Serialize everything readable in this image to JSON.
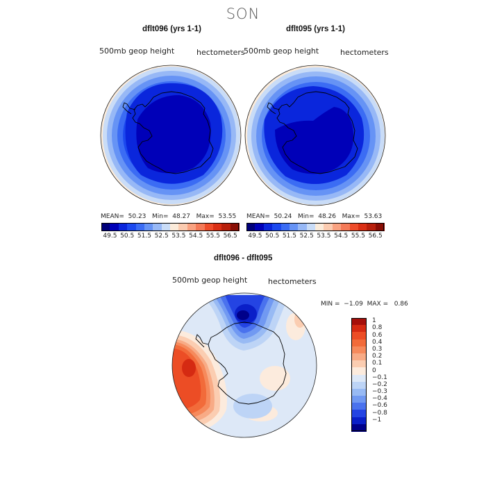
{
  "figure": {
    "season": "SON",
    "variable_label": "500mb geop height",
    "units_label": "hectometers"
  },
  "panels": [
    {
      "title": "dflt096 (yrs 1-1)",
      "stats": {
        "mean_label": "MEAN=",
        "mean": "50.23",
        "min_label": "Min=",
        "min": "48.27",
        "max_label": "Max=",
        "max": "53.55"
      }
    },
    {
      "title": "dflt095 (yrs 1-1)",
      "stats": {
        "mean_label": "MEAN=",
        "mean": "50.24",
        "min_label": "Min=",
        "min": "48.26",
        "max_label": "Max=",
        "max": "53.63"
      }
    }
  ],
  "abs_colorbar": {
    "ticks": [
      "49.5",
      "50.5",
      "51.5",
      "52.5",
      "53.5",
      "54.5",
      "55.5",
      "56.5"
    ],
    "colors": [
      "#00007a",
      "#0000b8",
      "#0a26dc",
      "#1c49ef",
      "#3b6cf4",
      "#6693f5",
      "#97b8f6",
      "#c9dcf7",
      "#fbebda",
      "#fbcbb0",
      "#f9a281",
      "#f47a58",
      "#ee4c2a",
      "#da2f14",
      "#b81f0b",
      "#8a0d04"
    ]
  },
  "diff_panel": {
    "title": "dflt096 - dflt095",
    "min_label": "MIN =",
    "min": "−1.09",
    "max_label": "MAX =",
    "max": "0.86",
    "colorbar_labels": [
      "1",
      "0.8",
      "0.6",
      "0.4",
      "0.3",
      "0.2",
      "0.1",
      "0",
      "−0.1",
      "−0.2",
      "−0.3",
      "−0.4",
      "−0.6",
      "−0.8",
      "−1"
    ],
    "colorbar_colors": [
      "#a50f0a",
      "#d52a12",
      "#ec4d25",
      "#f26b3a",
      "#f68a5c",
      "#f8ab86",
      "#fbcdb1",
      "#fcebdd",
      "#dde8f7",
      "#bdd4f6",
      "#98baf4",
      "#7199f2",
      "#4a72ee",
      "#2444e3",
      "#0a1fc8",
      "#00008a"
    ]
  }
}
